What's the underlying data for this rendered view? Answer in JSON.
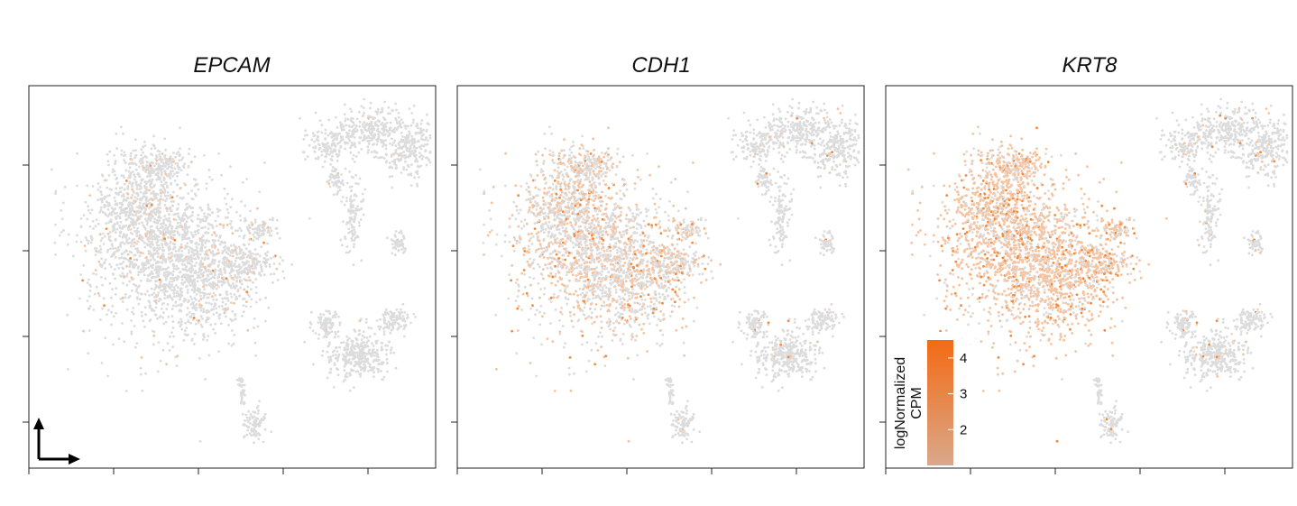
{
  "chart_data": [
    {
      "type": "scatter",
      "title": "EPCAM",
      "xlabel": "",
      "ylabel": "",
      "grid": false,
      "orientation_arrows": true,
      "expression_level": "low"
    },
    {
      "type": "scatter",
      "title": "CDH1",
      "xlabel": "",
      "ylabel": "",
      "grid": false,
      "expression_level": "medium"
    },
    {
      "type": "scatter",
      "title": "KRT8",
      "xlabel": "",
      "ylabel": "",
      "grid": false,
      "expression_level": "high"
    }
  ],
  "colorbar": {
    "title_line1": "logNormalized",
    "title_line2": "CPM",
    "range": [
      1.0,
      4.5
    ],
    "ticks": [
      "2",
      "3",
      "4"
    ],
    "tick_values": [
      2,
      3,
      4
    ],
    "low_color": "#d9a88a",
    "high_color": "#f46a14"
  },
  "colors": {
    "background_cells": "#dcdcdc",
    "expressed_light": "#f6c3a0",
    "expressed_strong": "#f28a3c"
  }
}
